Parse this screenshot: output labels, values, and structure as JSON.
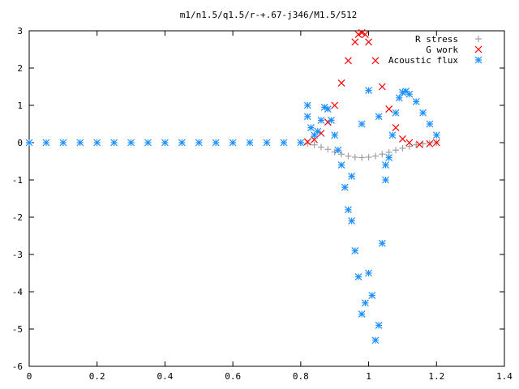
{
  "chart_data": {
    "type": "scatter",
    "title": "m1/n1.5/q1.5/r-+.67-j346/M1.5/512",
    "xlim": [
      0,
      1.4
    ],
    "ylim": [
      -6,
      3
    ],
    "xticks": [
      0,
      0.2,
      0.4,
      0.6,
      0.8,
      1,
      1.2,
      1.4
    ],
    "yticks": [
      -6,
      -5,
      -4,
      -3,
      -2,
      -1,
      0,
      1,
      2,
      3
    ],
    "legend_position": "top-right",
    "series": [
      {
        "name": "R stress",
        "marker": "plus",
        "color": "#a0a0a0",
        "points": [
          [
            0.8,
            0.0
          ],
          [
            0.82,
            -0.02
          ],
          [
            0.84,
            -0.06
          ],
          [
            0.86,
            -0.12
          ],
          [
            0.88,
            -0.18
          ],
          [
            0.9,
            -0.25
          ],
          [
            0.92,
            -0.31
          ],
          [
            0.94,
            -0.36
          ],
          [
            0.96,
            -0.39
          ],
          [
            0.98,
            -0.4
          ],
          [
            1.0,
            -0.39
          ],
          [
            1.02,
            -0.36
          ],
          [
            1.04,
            -0.31
          ],
          [
            1.06,
            -0.26
          ],
          [
            1.08,
            -0.2
          ],
          [
            1.1,
            -0.15
          ],
          [
            1.12,
            -0.1
          ],
          [
            1.14,
            -0.06
          ],
          [
            1.16,
            -0.03
          ],
          [
            1.18,
            -0.01
          ],
          [
            1.2,
            0.0
          ]
        ]
      },
      {
        "name": "G work",
        "marker": "cross",
        "color": "#ff0000",
        "points": [
          [
            0.82,
            0.02
          ],
          [
            0.84,
            0.08
          ],
          [
            0.86,
            0.25
          ],
          [
            0.88,
            0.55
          ],
          [
            0.9,
            1.0
          ],
          [
            0.92,
            1.6
          ],
          [
            0.94,
            2.2
          ],
          [
            0.96,
            2.7
          ],
          [
            0.97,
            2.9
          ],
          [
            0.98,
            2.95
          ],
          [
            0.99,
            2.9
          ],
          [
            1.0,
            2.7
          ],
          [
            1.02,
            2.2
          ],
          [
            1.04,
            1.5
          ],
          [
            1.06,
            0.9
          ],
          [
            1.08,
            0.4
          ],
          [
            1.1,
            0.1
          ],
          [
            1.12,
            0.0
          ],
          [
            1.15,
            -0.05
          ],
          [
            1.18,
            -0.03
          ],
          [
            1.2,
            0.0
          ]
        ]
      },
      {
        "name": "Acoustic flux",
        "marker": "star",
        "color": "#1e90ff",
        "points": [
          [
            0.0,
            0.0
          ],
          [
            0.05,
            0.0
          ],
          [
            0.1,
            0.0
          ],
          [
            0.15,
            0.0
          ],
          [
            0.2,
            0.0
          ],
          [
            0.25,
            0.0
          ],
          [
            0.3,
            0.0
          ],
          [
            0.35,
            0.0
          ],
          [
            0.4,
            0.0
          ],
          [
            0.45,
            0.0
          ],
          [
            0.5,
            0.0
          ],
          [
            0.55,
            0.0
          ],
          [
            0.6,
            0.0
          ],
          [
            0.65,
            0.0
          ],
          [
            0.7,
            0.0
          ],
          [
            0.75,
            0.0
          ],
          [
            0.8,
            0.0
          ],
          [
            0.82,
            1.0
          ],
          [
            0.82,
            0.7
          ],
          [
            0.83,
            0.4
          ],
          [
            0.84,
            0.2
          ],
          [
            0.85,
            0.3
          ],
          [
            0.86,
            0.6
          ],
          [
            0.87,
            0.95
          ],
          [
            0.88,
            0.9
          ],
          [
            0.89,
            0.6
          ],
          [
            0.9,
            0.2
          ],
          [
            0.91,
            -0.2
          ],
          [
            0.92,
            -0.6
          ],
          [
            0.93,
            -1.2
          ],
          [
            0.94,
            -1.8
          ],
          [
            0.95,
            -2.1
          ],
          [
            0.96,
            -2.9
          ],
          [
            0.97,
            -3.6
          ],
          [
            0.98,
            -4.6
          ],
          [
            0.99,
            -4.3
          ],
          [
            1.0,
            -3.5
          ],
          [
            1.01,
            -4.1
          ],
          [
            1.02,
            -5.3
          ],
          [
            1.03,
            -4.9
          ],
          [
            1.04,
            -2.7
          ],
          [
            1.05,
            -1.0
          ],
          [
            1.06,
            -0.4
          ],
          [
            1.07,
            0.2
          ],
          [
            1.08,
            0.8
          ],
          [
            1.09,
            1.2
          ],
          [
            1.1,
            1.35
          ],
          [
            1.11,
            1.38
          ],
          [
            1.12,
            1.3
          ],
          [
            1.14,
            1.1
          ],
          [
            1.16,
            0.8
          ],
          [
            1.18,
            0.5
          ],
          [
            1.2,
            0.2
          ],
          [
            1.0,
            1.4
          ],
          [
            0.98,
            0.5
          ],
          [
            0.95,
            -0.9
          ],
          [
            1.03,
            0.7
          ],
          [
            1.05,
            -0.6
          ]
        ]
      }
    ]
  }
}
